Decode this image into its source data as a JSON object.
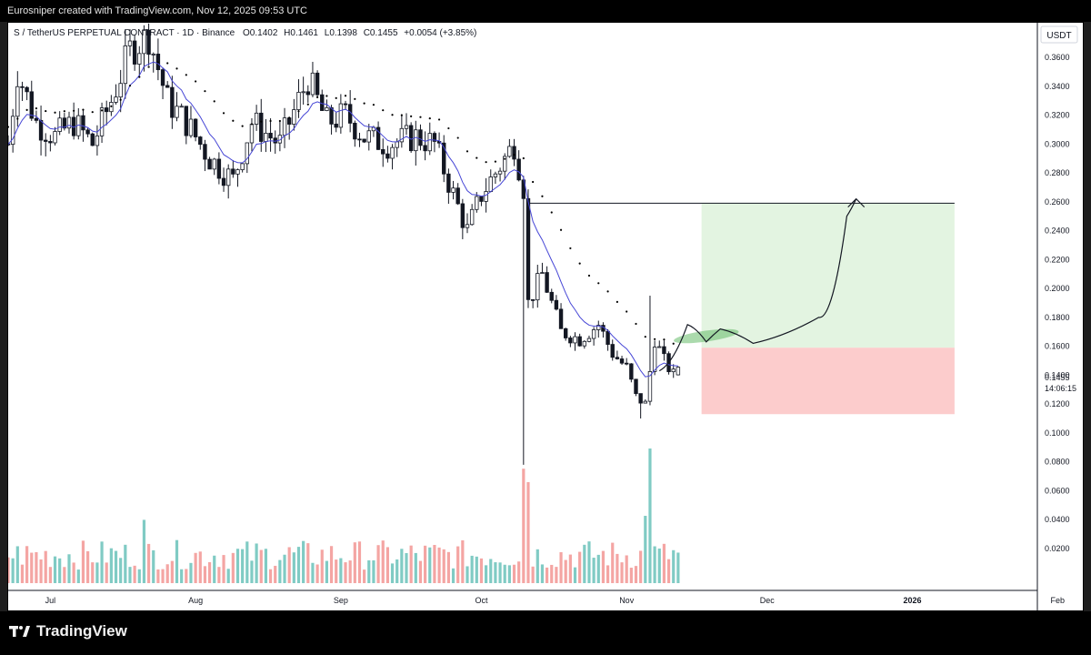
{
  "header": {
    "caption": "Eurosniper created with TradingView.com, Nov 12, 2025 09:53 UTC"
  },
  "legend": {
    "symbol": "S / TetherUS PERPETUAL CONTRACT · 1D · Binance",
    "open": "O0.1402",
    "high": "H0.1461",
    "low": "L0.1398",
    "close": "C0.1455",
    "change": "+0.0054 (+3.85%)"
  },
  "price_axis": {
    "currency": "USDT",
    "ticks": [
      "0.3600",
      "0.3400",
      "0.3200",
      "0.3000",
      "0.2800",
      "0.2600",
      "0.2400",
      "0.2200",
      "0.2000",
      "0.1800",
      "0.1600",
      "0.1400",
      "0.1200",
      "0.1000",
      "0.0800",
      "0.0600",
      "0.0400",
      "0.0200"
    ],
    "last_price": "0.1455",
    "countdown": "14:06:15"
  },
  "time_axis": {
    "labels": [
      "Jul",
      "Aug",
      "Sep",
      "Oct",
      "Nov",
      "Dec",
      "2026",
      "Feb"
    ]
  },
  "footer": {
    "brand": "TradingView"
  },
  "colors": {
    "up": "#26a69a",
    "down": "#ef5350",
    "vol_up": "#80cbc4",
    "vol_down": "#f4a5a3",
    "ema": "#4747d6",
    "ma_dots": "#000000",
    "target_zone": "#e3f4e1",
    "stop_zone": "#fccccc",
    "highlight": "#66bb6a"
  },
  "chart_data": {
    "type": "candlestick",
    "timeframe": "1D",
    "x_range": [
      "2025-06-22",
      "2026-02-25"
    ],
    "ylim": [
      0.0,
      0.38
    ],
    "ohlc_anchors": [
      {
        "date": "2025-06-22",
        "close": 0.3
      },
      {
        "date": "2025-06-24",
        "close": 0.35
      },
      {
        "date": "2025-06-28",
        "close": 0.315
      },
      {
        "date": "2025-07-02",
        "close": 0.305
      },
      {
        "date": "2025-07-06",
        "close": 0.315
      },
      {
        "date": "2025-07-10",
        "close": 0.3
      },
      {
        "date": "2025-07-14",
        "close": 0.33
      },
      {
        "date": "2025-07-18",
        "close": 0.365
      },
      {
        "date": "2025-07-22",
        "close": 0.375
      },
      {
        "date": "2025-07-26",
        "close": 0.33
      },
      {
        "date": "2025-07-30",
        "close": 0.315
      },
      {
        "date": "2025-08-04",
        "close": 0.29
      },
      {
        "date": "2025-08-09",
        "close": 0.275
      },
      {
        "date": "2025-08-13",
        "close": 0.315
      },
      {
        "date": "2025-08-19",
        "close": 0.3
      },
      {
        "date": "2025-08-25",
        "close": 0.345
      },
      {
        "date": "2025-08-29",
        "close": 0.315
      },
      {
        "date": "2025-09-02",
        "close": 0.32
      },
      {
        "date": "2025-09-06",
        "close": 0.305
      },
      {
        "date": "2025-09-11",
        "close": 0.3
      },
      {
        "date": "2025-09-17",
        "close": 0.305
      },
      {
        "date": "2025-09-21",
        "close": 0.3
      },
      {
        "date": "2025-09-25",
        "close": 0.265
      },
      {
        "date": "2025-09-28",
        "close": 0.24
      },
      {
        "date": "2025-10-01",
        "close": 0.265
      },
      {
        "date": "2025-10-04",
        "close": 0.28
      },
      {
        "date": "2025-10-08",
        "close": 0.3
      },
      {
        "date": "2025-10-10",
        "close": 0.27
      },
      {
        "date": "2025-10-11",
        "close": 0.19
      },
      {
        "date": "2025-10-14",
        "close": 0.21
      },
      {
        "date": "2025-10-18",
        "close": 0.17
      },
      {
        "date": "2025-10-22",
        "close": 0.165
      },
      {
        "date": "2025-10-26",
        "close": 0.175
      },
      {
        "date": "2025-10-29",
        "close": 0.155
      },
      {
        "date": "2025-11-01",
        "close": 0.145
      },
      {
        "date": "2025-11-03",
        "close": 0.125
      },
      {
        "date": "2025-11-05",
        "close": 0.12
      },
      {
        "date": "2025-11-07",
        "close": 0.165
      },
      {
        "date": "2025-11-09",
        "close": 0.15
      },
      {
        "date": "2025-11-11",
        "close": 0.1402
      },
      {
        "date": "2025-11-12",
        "open": 0.1402,
        "high": 0.1461,
        "low": 0.1398,
        "close": 0.1455
      }
    ],
    "notable_wicks": [
      {
        "date": "2025-10-10",
        "low": 0.078
      },
      {
        "date": "2025-11-06",
        "high": 0.195
      },
      {
        "date": "2025-11-04",
        "low": 0.11
      }
    ],
    "volume": {
      "relative_spikes": [
        {
          "date": "2025-10-10",
          "rel": 0.85
        },
        {
          "date": "2025-10-11",
          "rel": 0.75
        },
        {
          "date": "2025-11-06",
          "rel": 1.0
        },
        {
          "date": "2025-11-05",
          "rel": 0.5
        },
        {
          "date": "2025-07-21",
          "rel": 0.47
        }
      ]
    },
    "indicators": [
      {
        "type": "ema",
        "color": "#4747d6",
        "style": "line"
      },
      {
        "type": "ma",
        "color": "#000000",
        "style": "dots"
      }
    ],
    "position_tool": {
      "start_date": "2025-11-17",
      "end_date": "2026-01-10",
      "entry": 0.159,
      "target": 0.259,
      "stop": 0.113
    },
    "target_line": {
      "start_date": "2025-10-11",
      "end_date": "2026-01-10",
      "price": 0.259
    },
    "drawn_path": {
      "points": [
        {
          "date": "2025-11-08",
          "price": 0.143
        },
        {
          "date": "2025-11-14",
          "price": 0.175
        },
        {
          "date": "2025-11-18",
          "price": 0.163
        },
        {
          "date": "2025-11-21",
          "price": 0.172
        },
        {
          "date": "2025-11-28",
          "price": 0.162
        },
        {
          "date": "2025-12-12",
          "price": 0.18
        },
        {
          "date": "2025-12-18",
          "price": 0.25
        },
        {
          "date": "2025-12-20",
          "price": 0.262
        }
      ],
      "arrow_at": {
        "date": "2025-12-20",
        "price": 0.262
      }
    },
    "highlight_zone": {
      "start_date": "2025-11-11",
      "end_date": "2025-11-25",
      "price": 0.167
    }
  }
}
